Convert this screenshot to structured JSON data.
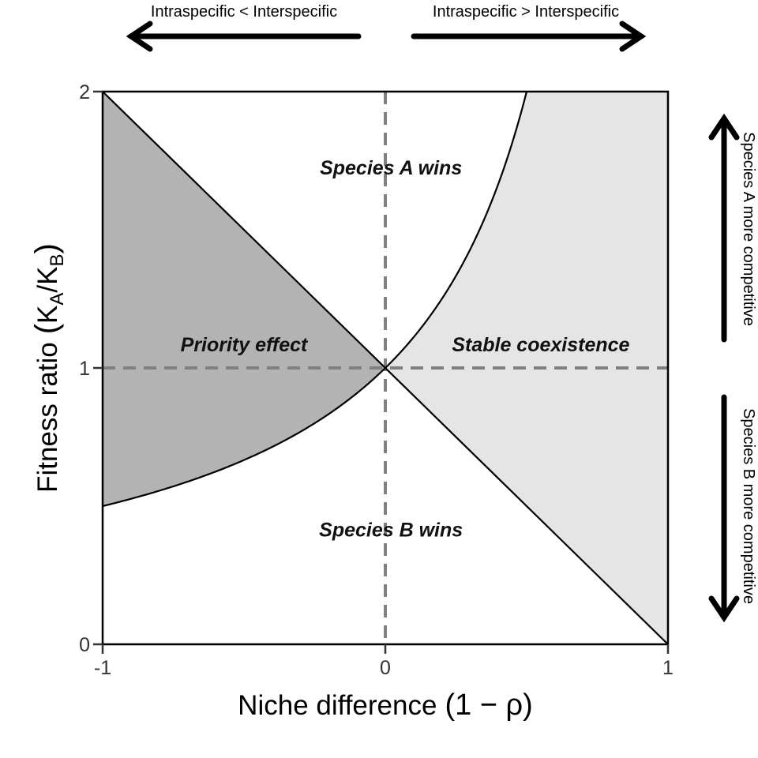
{
  "chart_data": {
    "type": "area",
    "xlabel": "Niche difference",
    "xlabel_expr": "(1 − ρ)",
    "ylabel": "Fitness ratio",
    "ylabel_expr": {
      "k1": "K",
      "s1": "A",
      "slash": "/",
      "k2": "K",
      "s2": "B"
    },
    "xlim": [
      -1,
      1
    ],
    "ylim": [
      0,
      2
    ],
    "xticks": [
      -1,
      0,
      1
    ],
    "yticks": [
      0,
      1,
      2
    ],
    "reference_lines": {
      "x": 0,
      "y": 1,
      "style": "dashed",
      "color": "#808080"
    },
    "boundaries": [
      {
        "name": "",
        "formula": "y = 1 - x"
      },
      {
        "name": "",
        "formula": "y = 1 / (1 - x)"
      }
    ],
    "regions": [
      {
        "label": "Species A wins",
        "fill": "#ffffff",
        "at": [
          0.02,
          1.7
        ]
      },
      {
        "label": "Priority effect",
        "fill": "#b3b3b3",
        "at": [
          -0.5,
          1.06
        ]
      },
      {
        "label": "Stable coexistence",
        "fill": "#e5e5e5",
        "at": [
          0.55,
          1.06
        ]
      },
      {
        "label": "Species B wins",
        "fill": "#ffffff",
        "at": [
          0.02,
          0.39
        ]
      }
    ],
    "annotations": {
      "left_arrow": "Intraspecific < Interspecific",
      "right_arrow": "Intraspecific > Interspecific",
      "up_arrow": "Species A more competitive",
      "down_arrow": "Species B more competitive"
    }
  }
}
